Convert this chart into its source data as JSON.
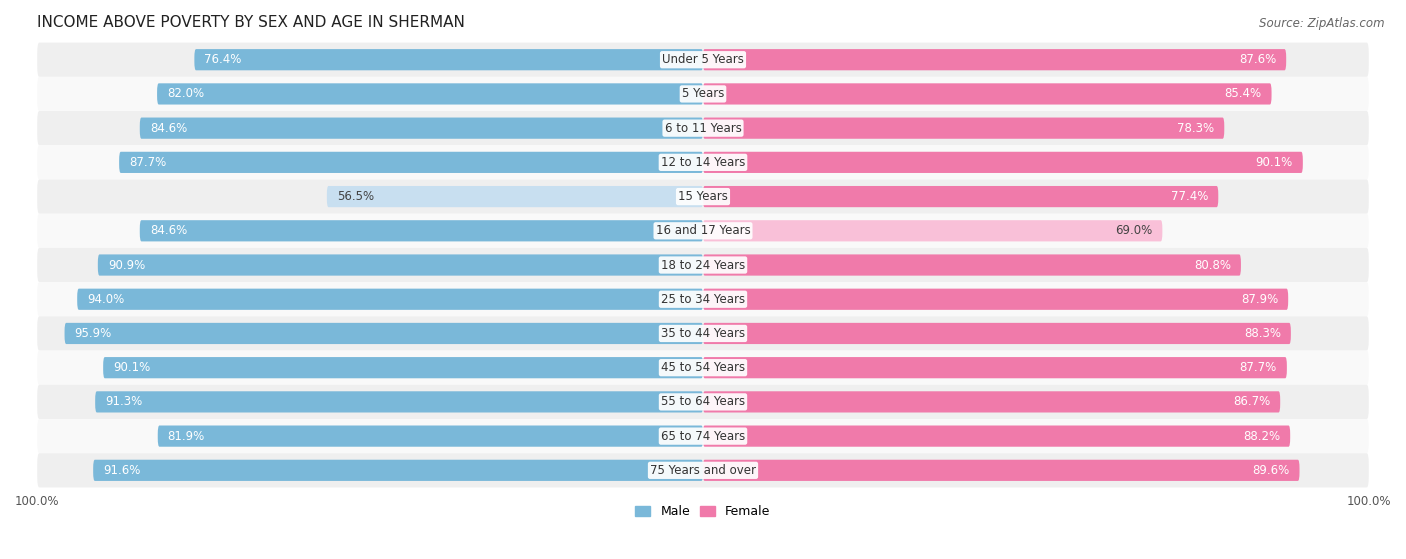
{
  "title": "INCOME ABOVE POVERTY BY SEX AND AGE IN SHERMAN",
  "source": "Source: ZipAtlas.com",
  "categories": [
    "Under 5 Years",
    "5 Years",
    "6 to 11 Years",
    "12 to 14 Years",
    "15 Years",
    "16 and 17 Years",
    "18 to 24 Years",
    "25 to 34 Years",
    "35 to 44 Years",
    "45 to 54 Years",
    "55 to 64 Years",
    "65 to 74 Years",
    "75 Years and over"
  ],
  "male_values": [
    76.4,
    82.0,
    84.6,
    87.7,
    56.5,
    84.6,
    90.9,
    94.0,
    95.9,
    90.1,
    91.3,
    81.9,
    91.6
  ],
  "female_values": [
    87.6,
    85.4,
    78.3,
    90.1,
    77.4,
    69.0,
    80.8,
    87.9,
    88.3,
    87.7,
    86.7,
    88.2,
    89.6
  ],
  "male_color": "#7ab8d9",
  "female_color": "#f07aaa",
  "male_light_color": "#c8dff0",
  "female_light_color": "#f9c0d8",
  "bg_row_even": "#efefef",
  "bg_row_odd": "#f9f9f9",
  "bar_height": 0.62,
  "axis_max": 100.0,
  "title_fontsize": 11,
  "label_fontsize": 8.5,
  "value_fontsize": 8.5,
  "tick_fontsize": 8.5,
  "source_fontsize": 8.5,
  "legend_fontsize": 9
}
